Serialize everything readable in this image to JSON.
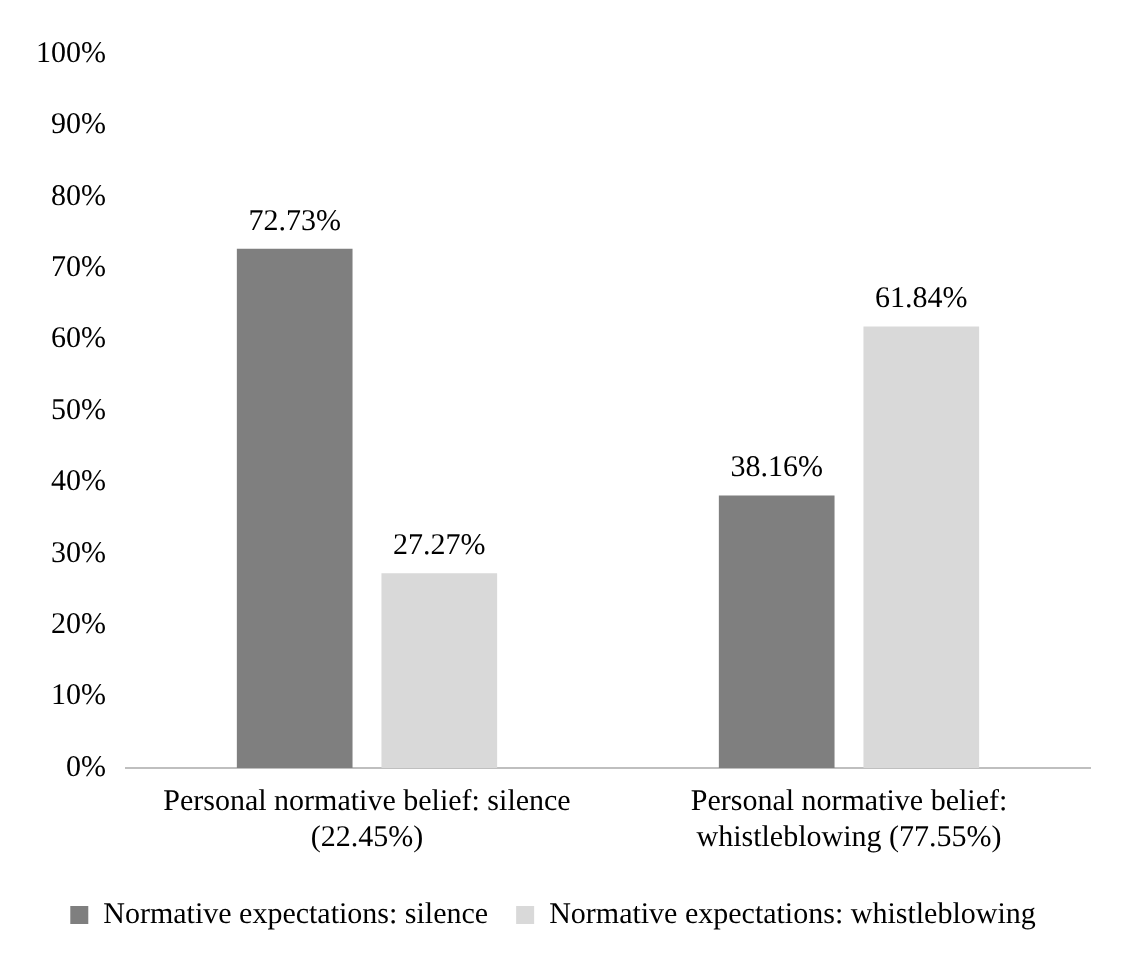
{
  "chart_data": {
    "type": "bar",
    "categories": [
      "Personal normative belief: silence (22.45%)",
      "Personal normative belief: whistleblowing (77.55%)"
    ],
    "series": [
      {
        "name": "Normative expectations: silence",
        "color": "#7f7f7f",
        "values": [
          72.73,
          38.16
        ],
        "value_labels": [
          "72.73%",
          "38.16%"
        ]
      },
      {
        "name": "Normative expectations: whistleblowing",
        "color": "#d9d9d9",
        "values": [
          27.27,
          61.84
        ],
        "value_labels": [
          "27.27%",
          "61.84%"
        ]
      }
    ],
    "ylim": [
      0,
      100
    ],
    "yticks": [
      {
        "value": 0,
        "label": "0%"
      },
      {
        "value": 10,
        "label": "10%"
      },
      {
        "value": 20,
        "label": "20%"
      },
      {
        "value": 30,
        "label": "30%"
      },
      {
        "value": 40,
        "label": "40%"
      },
      {
        "value": 50,
        "label": "50%"
      },
      {
        "value": 60,
        "label": "60%"
      },
      {
        "value": 70,
        "label": "70%"
      },
      {
        "value": 80,
        "label": "80%"
      },
      {
        "value": 90,
        "label": "90%"
      },
      {
        "value": 100,
        "label": "100%"
      }
    ],
    "grid": false,
    "legend": "bottom"
  }
}
